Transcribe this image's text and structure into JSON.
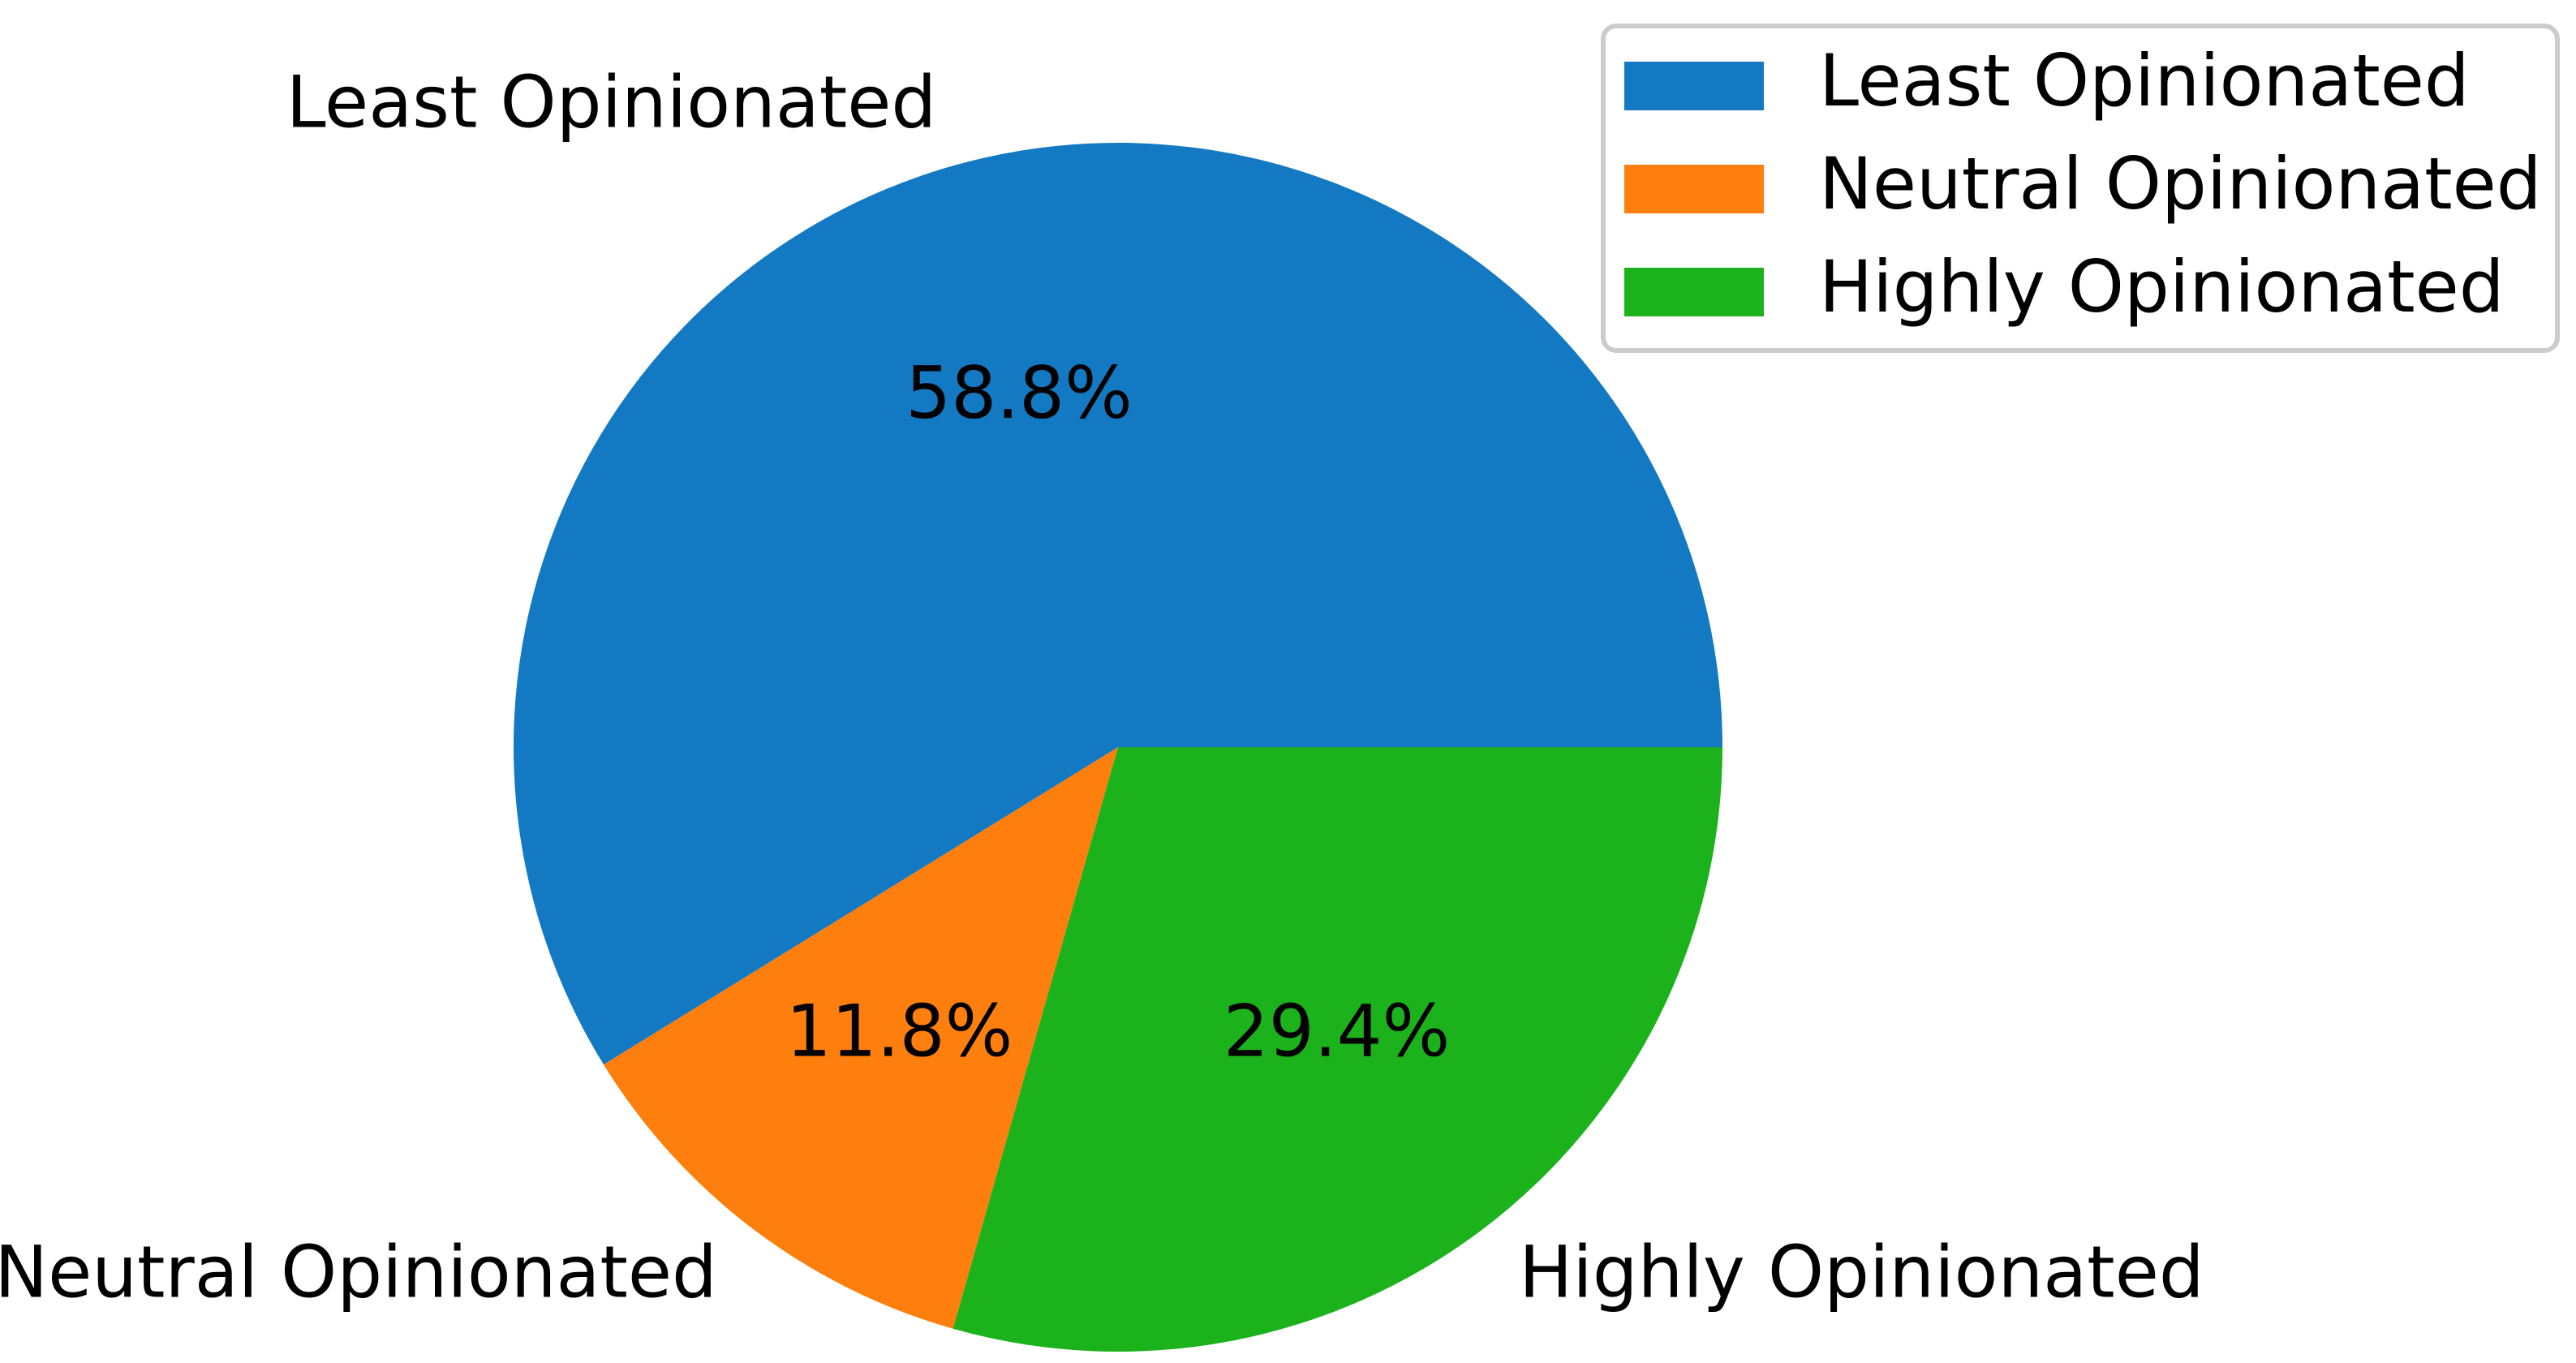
{
  "chart_data": {
    "type": "pie",
    "title": "",
    "categories": [
      "Least Opinionated",
      "Neutral Opinionated",
      "Highly Opinionated"
    ],
    "values": [
      58.8,
      11.8,
      29.4
    ],
    "value_labels": [
      "58.8%",
      "11.8%",
      "29.4%"
    ],
    "colors": [
      "#1f77b4",
      "#ff7f0e",
      "#2ca02c"
    ],
    "start_angle_deg": 0,
    "direction": "counterclockwise",
    "legend": {
      "placement": "top-right",
      "entries": [
        "Least Opinionated",
        "Neutral Opinionated",
        "Highly Opinionated"
      ]
    }
  }
}
